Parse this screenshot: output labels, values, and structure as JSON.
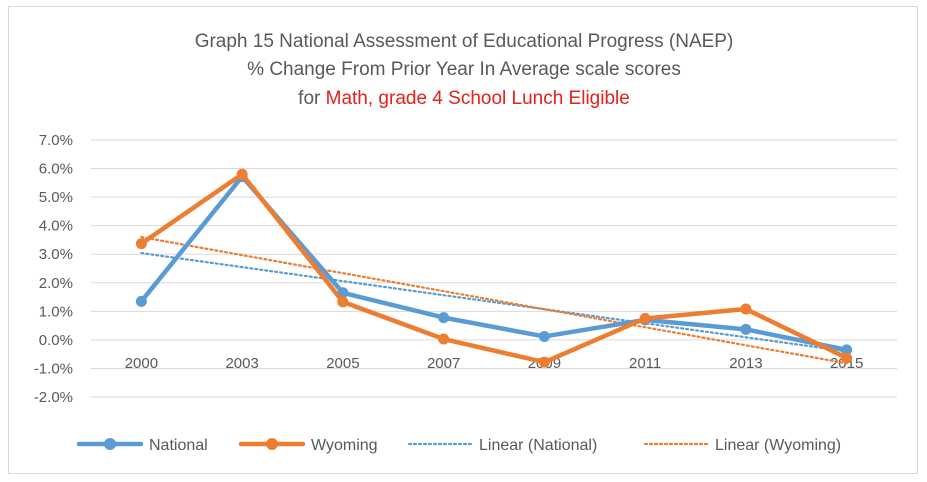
{
  "chart_data": {
    "type": "line",
    "title_lines": [
      "Graph 15 National Assessment of Educational Progress (NAEP)",
      "% Change From Prior Year In Average scale scores"
    ],
    "title_line3_prefix": "for ",
    "title_line3_highlight": "Math, grade 4 School Lunch Eligible",
    "categories": [
      "2000",
      "2003",
      "2005",
      "2007",
      "2009",
      "2011",
      "2013",
      "2015"
    ],
    "y_tick_labels": [
      "7.0%",
      "6.0%",
      "5.0%",
      "4.0%",
      "3.0%",
      "2.0%",
      "1.0%",
      "0.0%",
      "-1.0%",
      "-2.0%"
    ],
    "ylim": [
      -0.02,
      0.07
    ],
    "grid": true,
    "legend_position": "bottom",
    "series": [
      {
        "name": "National",
        "color": "#5b9bd5",
        "values": [
          0.0135,
          0.0572,
          0.0165,
          0.0078,
          0.0012,
          0.007,
          0.0037,
          -0.0035
        ]
      },
      {
        "name": "Wyoming",
        "color": "#ed7d31",
        "values": [
          0.0337,
          0.058,
          0.0133,
          0.0003,
          -0.0078,
          0.0075,
          0.0108,
          -0.0063
        ]
      }
    ],
    "trendlines": [
      {
        "name": "Linear (National)",
        "color": "#5b9bd5",
        "start": 0.0304,
        "end": -0.004
      },
      {
        "name": "Linear (Wyoming)",
        "color": "#ed7d31",
        "start": 0.036,
        "end": -0.0082
      }
    ]
  }
}
